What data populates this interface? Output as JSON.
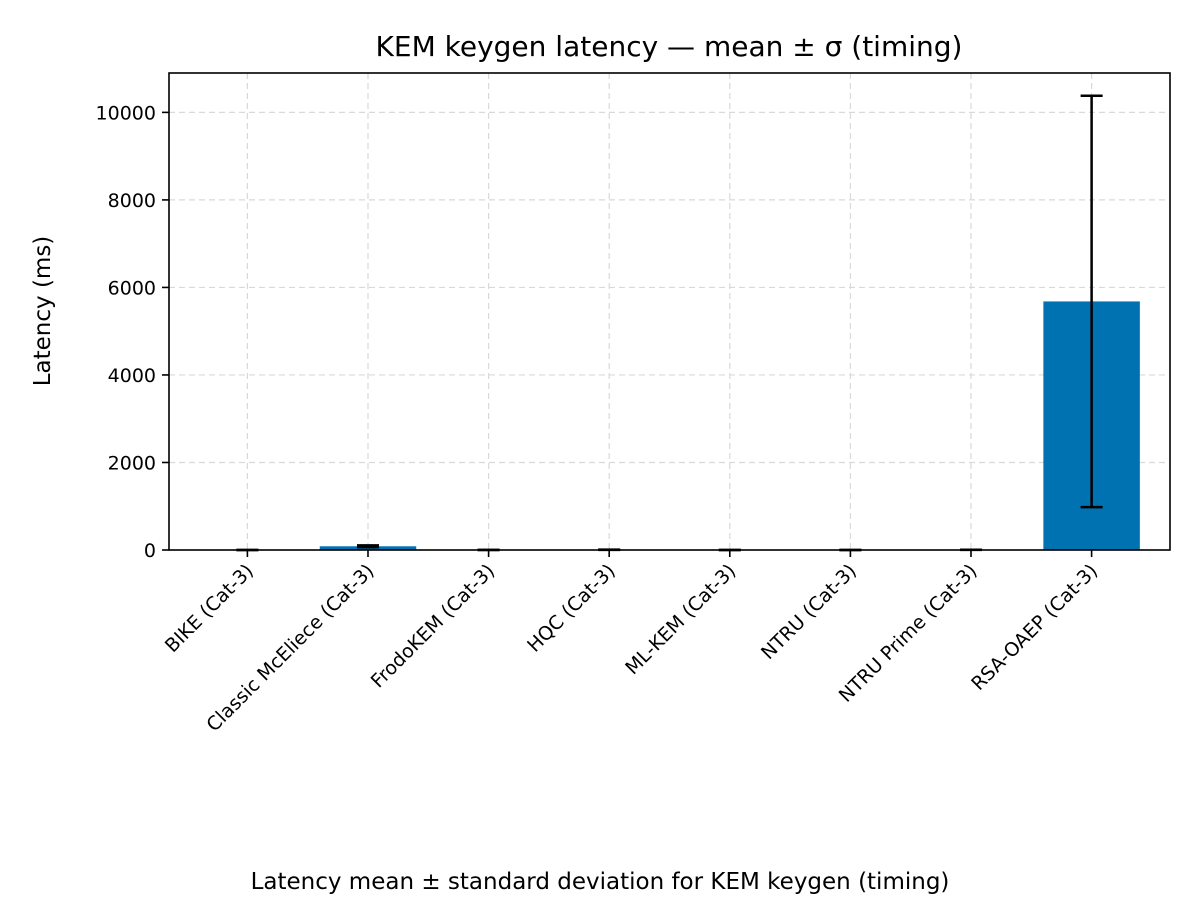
{
  "chart_data": {
    "type": "bar",
    "title": "KEM keygen latency — mean ± σ (timing)",
    "xlabel": "",
    "ylabel": "Latency (ms)",
    "caption": "Latency mean ± standard deviation for KEM keygen (timing)",
    "categories": [
      "BIKE (Cat-3)",
      "Classic McEliece (Cat-3)",
      "FrodoKEM (Cat-3)",
      "HQC (Cat-3)",
      "ML-KEM (Cat-3)",
      "NTRU (Cat-3)",
      "NTRU Prime (Cat-3)",
      "RSA-OAEP (Cat-3)"
    ],
    "series": [
      {
        "values": [
          0.5,
          85,
          1,
          5,
          0.1,
          0.5,
          5,
          5680
        ],
        "errors": [
          0.3,
          20,
          0.5,
          3,
          0.05,
          0.2,
          2,
          4700
        ]
      }
    ],
    "yticks": [
      0,
      2000,
      4000,
      6000,
      8000,
      10000
    ],
    "ylim": [
      0,
      10900
    ],
    "grid": true,
    "bar_color": "#0072b2",
    "error_color": "#000000",
    "grid_color": "#d9d9d9"
  }
}
